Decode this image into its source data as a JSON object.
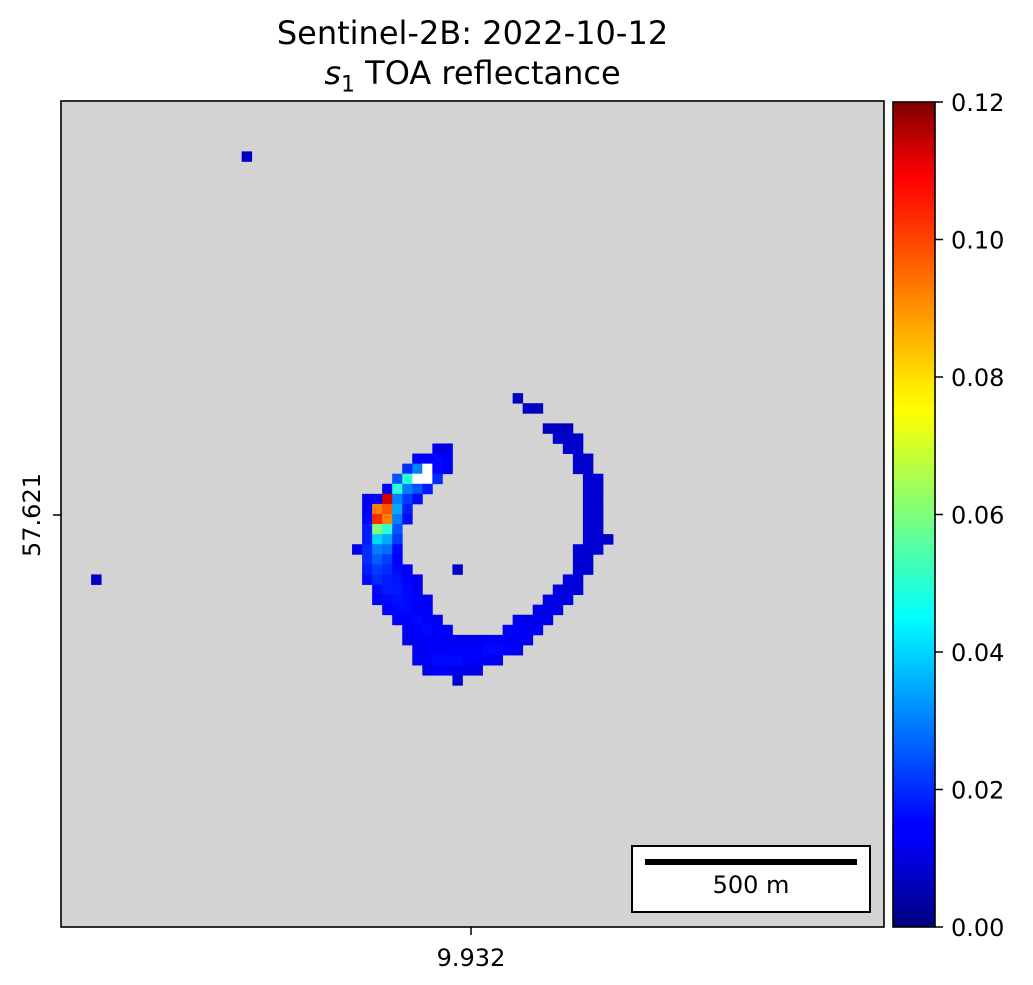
{
  "title": {
    "line1": "Sentinel-2B: 2022-10-12",
    "symbol": "s",
    "subscript": "1",
    "rest": "TOA reflectance"
  },
  "scalebar": {
    "label": "500 m"
  },
  "chart_data": {
    "type": "heatmap",
    "title": "Sentinel-2B: 2022-10-12",
    "subtitle": "s1 TOA reflectance",
    "x_ticks": [
      {
        "value": 9.932,
        "label": "9.932"
      }
    ],
    "y_ticks": [
      {
        "value": 57.621,
        "label": "57.621"
      }
    ],
    "colorbar": {
      "colormap": "jet",
      "range": [
        0.0,
        0.12
      ],
      "ticks": [
        "0.00",
        "0.02",
        "0.04",
        "0.06",
        "0.08",
        "0.10",
        "0.12"
      ]
    },
    "colors": {
      "background": "#d3d3d3",
      "saturated": "#ffffff"
    },
    "grid_size": 82,
    "pixels": [
      [
        18,
        5,
        0.008
      ],
      [
        3,
        47,
        0.008
      ],
      [
        45,
        29,
        0.008
      ],
      [
        46,
        30,
        0.008
      ],
      [
        47,
        30,
        0.008
      ],
      [
        48,
        32,
        0.008
      ],
      [
        49,
        32,
        0.008
      ],
      [
        50,
        32,
        0.008
      ],
      [
        49,
        33,
        0.009
      ],
      [
        50,
        33,
        0.009
      ],
      [
        51,
        33,
        0.009
      ],
      [
        50,
        34,
        0.009
      ],
      [
        51,
        34,
        0.009
      ],
      [
        51,
        35,
        0.009
      ],
      [
        52,
        35,
        0.009
      ],
      [
        51,
        36,
        0.009
      ],
      [
        52,
        36,
        0.009
      ],
      [
        52,
        37,
        0.01
      ],
      [
        53,
        37,
        0.01
      ],
      [
        52,
        38,
        0.01
      ],
      [
        53,
        38,
        0.01
      ],
      [
        52,
        39,
        0.01
      ],
      [
        53,
        39,
        0.01
      ],
      [
        52,
        40,
        0.01
      ],
      [
        53,
        40,
        0.01
      ],
      [
        52,
        41,
        0.01
      ],
      [
        53,
        41,
        0.01
      ],
      [
        52,
        42,
        0.01
      ],
      [
        53,
        42,
        0.01
      ],
      [
        52,
        43,
        0.01
      ],
      [
        53,
        43,
        0.01
      ],
      [
        54,
        43,
        0.009
      ],
      [
        51,
        44,
        0.01
      ],
      [
        52,
        44,
        0.01
      ],
      [
        53,
        44,
        0.01
      ],
      [
        51,
        45,
        0.01
      ],
      [
        52,
        45,
        0.01
      ],
      [
        51,
        46,
        0.01
      ],
      [
        52,
        46,
        0.01
      ],
      [
        50,
        47,
        0.011
      ],
      [
        51,
        47,
        0.011
      ],
      [
        49,
        48,
        0.011
      ],
      [
        50,
        48,
        0.011
      ],
      [
        51,
        48,
        0.011
      ],
      [
        48,
        49,
        0.012
      ],
      [
        49,
        49,
        0.012
      ],
      [
        50,
        49,
        0.012
      ],
      [
        47,
        50,
        0.012
      ],
      [
        48,
        50,
        0.012
      ],
      [
        49,
        50,
        0.012
      ],
      [
        45,
        51,
        0.013
      ],
      [
        46,
        51,
        0.013
      ],
      [
        47,
        51,
        0.013
      ],
      [
        48,
        51,
        0.013
      ],
      [
        44,
        52,
        0.014
      ],
      [
        45,
        52,
        0.014
      ],
      [
        46,
        52,
        0.014
      ],
      [
        47,
        52,
        0.014
      ],
      [
        42,
        53,
        0.014
      ],
      [
        43,
        53,
        0.014
      ],
      [
        44,
        53,
        0.015
      ],
      [
        45,
        53,
        0.014
      ],
      [
        46,
        53,
        0.013
      ],
      [
        40,
        54,
        0.015
      ],
      [
        41,
        54,
        0.015
      ],
      [
        42,
        54,
        0.016
      ],
      [
        43,
        54,
        0.016
      ],
      [
        44,
        54,
        0.015
      ],
      [
        45,
        54,
        0.013
      ],
      [
        37,
        54,
        0.014
      ],
      [
        38,
        54,
        0.015
      ],
      [
        39,
        54,
        0.015
      ],
      [
        35,
        55,
        0.014
      ],
      [
        36,
        55,
        0.015
      ],
      [
        37,
        55,
        0.016
      ],
      [
        38,
        55,
        0.016
      ],
      [
        39,
        55,
        0.016
      ],
      [
        40,
        55,
        0.015
      ],
      [
        41,
        55,
        0.015
      ],
      [
        42,
        55,
        0.014
      ],
      [
        43,
        55,
        0.013
      ],
      [
        36,
        56,
        0.013
      ],
      [
        37,
        56,
        0.014
      ],
      [
        38,
        56,
        0.014
      ],
      [
        39,
        56,
        0.013
      ],
      [
        40,
        56,
        0.013
      ],
      [
        41,
        56,
        0.012
      ],
      [
        39,
        46,
        0.008
      ],
      [
        40,
        54,
        0.015
      ],
      [
        37,
        34,
        0.012
      ],
      [
        38,
        34,
        0.012
      ],
      [
        35,
        35,
        0.014
      ],
      [
        36,
        35,
        0.014
      ],
      [
        37,
        35,
        0.016
      ],
      [
        38,
        35,
        0.014
      ],
      [
        34,
        36,
        0.02
      ],
      [
        35,
        36,
        0.03
      ],
      [
        36,
        36,
        0.14
      ],
      [
        37,
        36,
        0.016
      ],
      [
        38,
        36,
        0.014
      ],
      [
        33,
        37,
        0.025
      ],
      [
        34,
        37,
        0.05
      ],
      [
        35,
        37,
        0.14
      ],
      [
        36,
        37,
        0.14
      ],
      [
        37,
        37,
        0.02
      ],
      [
        32,
        38,
        0.015
      ],
      [
        33,
        38,
        0.05
      ],
      [
        34,
        38,
        0.03
      ],
      [
        35,
        38,
        0.025
      ],
      [
        36,
        38,
        0.018
      ],
      [
        30,
        39,
        0.014
      ],
      [
        31,
        39,
        0.015
      ],
      [
        32,
        39,
        0.11
      ],
      [
        33,
        39,
        0.03
      ],
      [
        34,
        39,
        0.022
      ],
      [
        35,
        39,
        0.016
      ],
      [
        30,
        40,
        0.015
      ],
      [
        31,
        40,
        0.09
      ],
      [
        32,
        40,
        0.095
      ],
      [
        33,
        40,
        0.035
      ],
      [
        34,
        40,
        0.018
      ],
      [
        30,
        41,
        0.016
      ],
      [
        31,
        41,
        0.1
      ],
      [
        32,
        41,
        0.09
      ],
      [
        33,
        41,
        0.03
      ],
      [
        34,
        41,
        0.016
      ],
      [
        30,
        42,
        0.018
      ],
      [
        31,
        42,
        0.06
      ],
      [
        32,
        42,
        0.05
      ],
      [
        33,
        42,
        0.025
      ],
      [
        30,
        43,
        0.018
      ],
      [
        31,
        43,
        0.04
      ],
      [
        32,
        43,
        0.035
      ],
      [
        33,
        43,
        0.022
      ],
      [
        29,
        44,
        0.013
      ],
      [
        30,
        44,
        0.02
      ],
      [
        31,
        44,
        0.03
      ],
      [
        32,
        44,
        0.028
      ],
      [
        33,
        44,
        0.016
      ],
      [
        30,
        45,
        0.02
      ],
      [
        31,
        45,
        0.026
      ],
      [
        32,
        45,
        0.022
      ],
      [
        33,
        45,
        0.015
      ],
      [
        30,
        46,
        0.018
      ],
      [
        31,
        46,
        0.022
      ],
      [
        32,
        46,
        0.02
      ],
      [
        33,
        46,
        0.016
      ],
      [
        34,
        46,
        0.014
      ],
      [
        30,
        47,
        0.016
      ],
      [
        31,
        47,
        0.02
      ],
      [
        32,
        47,
        0.018
      ],
      [
        33,
        47,
        0.017
      ],
      [
        34,
        47,
        0.015
      ],
      [
        35,
        47,
        0.013
      ],
      [
        31,
        48,
        0.016
      ],
      [
        32,
        48,
        0.018
      ],
      [
        33,
        48,
        0.018
      ],
      [
        34,
        48,
        0.016
      ],
      [
        35,
        48,
        0.014
      ],
      [
        31,
        49,
        0.015
      ],
      [
        32,
        49,
        0.016
      ],
      [
        33,
        49,
        0.017
      ],
      [
        34,
        49,
        0.016
      ],
      [
        35,
        49,
        0.015
      ],
      [
        36,
        49,
        0.013
      ],
      [
        32,
        50,
        0.015
      ],
      [
        33,
        50,
        0.016
      ],
      [
        34,
        50,
        0.016
      ],
      [
        35,
        50,
        0.015
      ],
      [
        36,
        50,
        0.014
      ],
      [
        33,
        51,
        0.014
      ],
      [
        34,
        51,
        0.015
      ],
      [
        35,
        51,
        0.016
      ],
      [
        36,
        51,
        0.015
      ],
      [
        37,
        51,
        0.014
      ],
      [
        34,
        52,
        0.014
      ],
      [
        35,
        52,
        0.015
      ],
      [
        36,
        52,
        0.016
      ],
      [
        37,
        52,
        0.015
      ],
      [
        38,
        52,
        0.014
      ],
      [
        34,
        53,
        0.013
      ],
      [
        35,
        53,
        0.014
      ],
      [
        36,
        53,
        0.015
      ],
      [
        37,
        53,
        0.015
      ],
      [
        38,
        53,
        0.014
      ],
      [
        39,
        53,
        0.013
      ],
      [
        40,
        53,
        0.013
      ],
      [
        41,
        53,
        0.013
      ],
      [
        35,
        54,
        0.013
      ],
      [
        36,
        54,
        0.014
      ],
      [
        39,
        57,
        0.01
      ]
    ]
  }
}
